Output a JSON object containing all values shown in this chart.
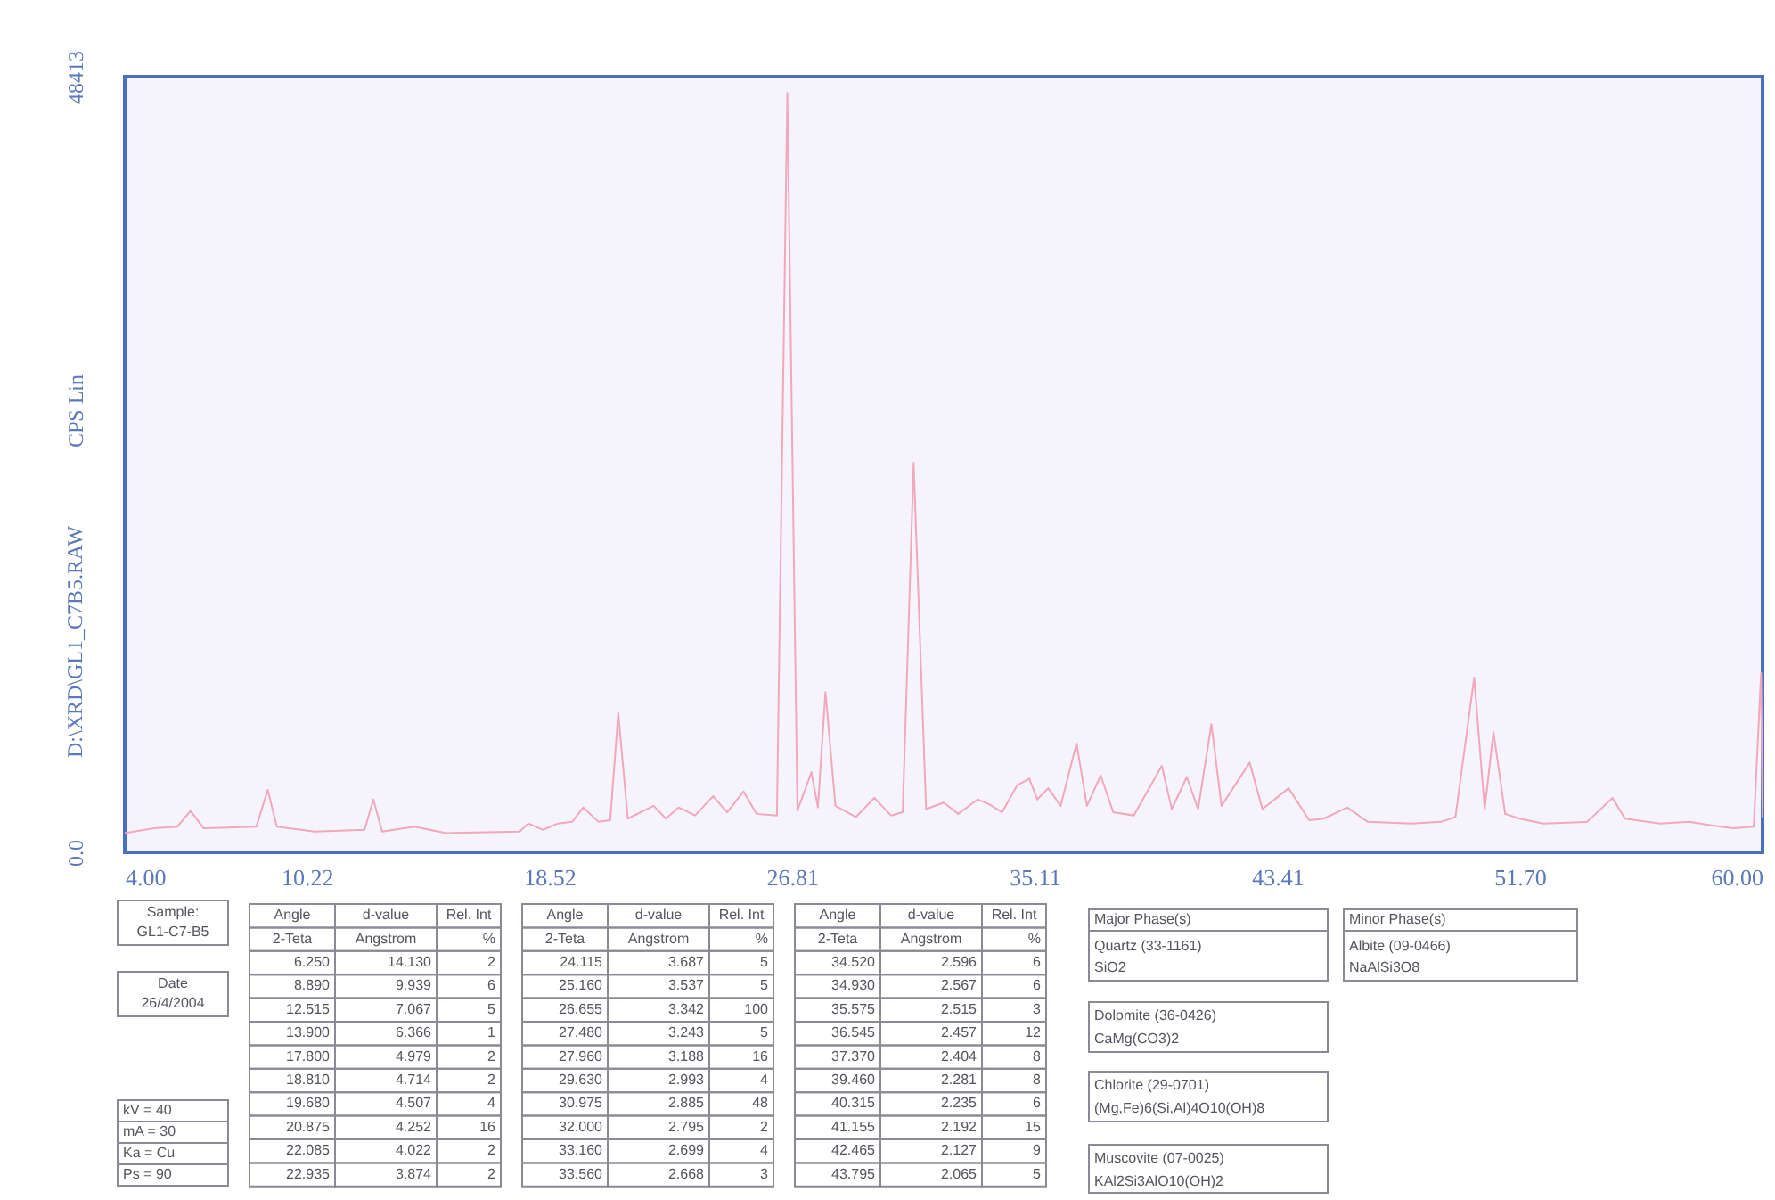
{
  "chart_data": {
    "type": "line",
    "ylabel": "CPS Lin",
    "xlim": [
      4,
      60
    ],
    "ylim": [
      0,
      48413
    ],
    "xticks": [
      {
        "value": 4,
        "label": "4.00"
      },
      10.22,
      18.52,
      26.81,
      35.11,
      43.41,
      {
        "value": 51.7,
        "label": "51.70"
      },
      {
        "value": 60,
        "label": "60.00"
      }
    ],
    "yticks": [
      {
        "value": 0,
        "label": "0.0"
      },
      48413
    ],
    "grid": false,
    "marker": "none",
    "line_style": "solid",
    "series": [
      {
        "color": "#f2a7bb",
        "x": [
          4.0,
          5.0,
          5.8,
          6.25,
          6.7,
          8.5,
          8.89,
          9.2,
          10.5,
          12.2,
          12.5,
          12.8,
          13.9,
          15.0,
          17.5,
          17.8,
          18.3,
          18.81,
          19.3,
          19.68,
          20.2,
          20.6,
          20.875,
          21.2,
          22.085,
          22.5,
          22.935,
          23.5,
          24.115,
          24.6,
          25.16,
          25.6,
          26.3,
          26.655,
          27.0,
          27.48,
          27.7,
          27.96,
          28.3,
          29.0,
          29.63,
          30.2,
          30.6,
          30.975,
          31.4,
          32.0,
          32.5,
          33.16,
          33.56,
          34.0,
          34.52,
          34.93,
          35.2,
          35.575,
          36.0,
          36.545,
          36.9,
          37.37,
          37.8,
          38.5,
          39.46,
          39.8,
          40.315,
          40.7,
          41.155,
          41.5,
          42.465,
          42.9,
          43.795,
          44.5,
          45.0,
          45.8,
          46.5,
          48.0,
          49.0,
          49.5,
          50.14,
          50.5,
          50.8,
          51.2,
          51.7,
          52.5,
          54.0,
          54.87,
          55.3,
          56.5,
          57.5,
          58.2,
          59.0,
          59.7,
          59.95,
          60.0
        ],
        "values": [
          1200,
          1500,
          1600,
          2600,
          1500,
          1600,
          3900,
          1600,
          1300,
          1400,
          3300,
          1300,
          1600,
          1200,
          1300,
          1800,
          1400,
          1800,
          1900,
          2800,
          1900,
          2000,
          8700,
          2100,
          2900,
          2100,
          2800,
          2300,
          3500,
          2500,
          3800,
          2400,
          2300,
          47400,
          2600,
          5000,
          2800,
          10000,
          2900,
          2200,
          3400,
          2300,
          2500,
          24300,
          2700,
          3100,
          2400,
          3300,
          3000,
          2500,
          4200,
          4600,
          3300,
          4000,
          2900,
          6800,
          2900,
          4800,
          2500,
          2300,
          5400,
          2700,
          4700,
          2700,
          8000,
          2900,
          5600,
          2700,
          4000,
          2000,
          2100,
          2800,
          1900,
          1800,
          1900,
          2200,
          10900,
          2700,
          7500,
          2400,
          2100,
          1800,
          1900,
          3400,
          2100,
          1800,
          1900,
          1700,
          1500,
          1600,
          11200,
          2200
        ]
      }
    ],
    "annotations": [
      "Sample:",
      "GL1-C7-B5",
      "Date",
      "26/4/2004",
      "kV = 40",
      "mA = 30",
      "Ka = Cu",
      "Ps = 90",
      "Angle",
      "d-value",
      "Rel. Int",
      "2-Teta",
      "Angstrom",
      "%",
      "6.250",
      "14.130",
      "2",
      "8.890",
      "9.939",
      "6",
      "12.515",
      "7.067",
      "5",
      "13.900",
      "6.366",
      "1",
      "17.800",
      "4.979",
      "2",
      "18.810",
      "4.714",
      "2",
      "19.680",
      "4.507",
      "4",
      "20.875",
      "4.252",
      "16",
      "22.085",
      "4.022",
      "2",
      "22.935",
      "3.874",
      "2",
      "Angle",
      "d-value",
      "Rel. Int",
      "2-Teta",
      "Angstrom",
      "%",
      "24.115",
      "3.687",
      "5",
      "25.160",
      "3.537",
      "5",
      "26.655",
      "3.342",
      "100",
      "27.480",
      "3.243",
      "5",
      "27.960",
      "3.188",
      "16",
      "29.630",
      "2.993",
      "4",
      "30.975",
      "2.885",
      "48",
      "32.000",
      "2.795",
      "2",
      "33.160",
      "2.699",
      "4",
      "33.560",
      "2.668",
      "3",
      "Angle",
      "d-value",
      "Rel. Int",
      "2-Teta",
      "Angstrom",
      "%",
      "34.520",
      "2.596",
      "6",
      "34.930",
      "2.567",
      "6",
      "35.575",
      "2.515",
      "3",
      "36.545",
      "2.457",
      "12",
      "37.370",
      "2.404",
      "8",
      "39.460",
      "2.281",
      "8",
      "40.315",
      "2.235",
      "6",
      "41.155",
      "2.192",
      "15",
      "42.465",
      "2.127",
      "9",
      "43.795",
      "2.065",
      "5",
      "Major Phase(s)",
      "Quartz   (33-1161)",
      "SiO2",
      "Dolomite   (36-0426)",
      "CaMg(CO3)2",
      "Chlorite   (29-0701)",
      "(Mg,Fe)6(Si,Al)4O10(OH)8",
      "Muscovite   (07-0025)",
      "KAl2Si3AlO10(OH)2",
      "Minor Phase(s)",
      "Albite   (09-0466)",
      "NaAlSi3O8",
      "D:\\XRD\\GL1_C7B5.RAW"
    ]
  }
}
